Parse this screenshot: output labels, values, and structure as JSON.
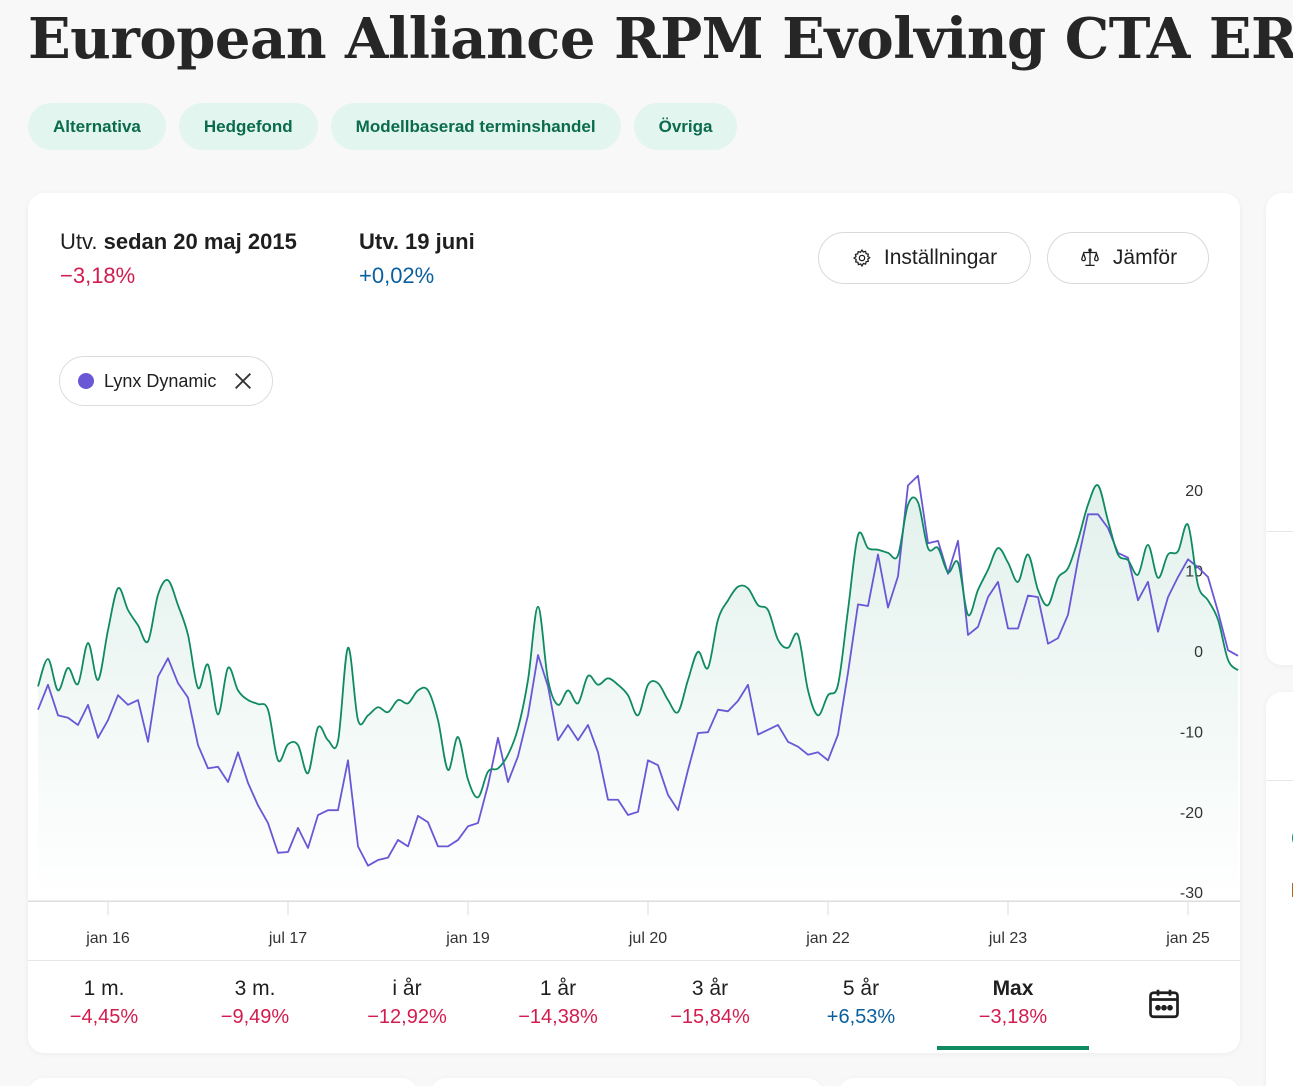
{
  "page": {
    "title": "European Alliance RPM Evolving CTA ER",
    "tags": [
      "Alternativa",
      "Hedgefond",
      "Modellbaserad terminshandel",
      "Övriga"
    ]
  },
  "summary": {
    "since": {
      "label_prefix": "Utv. ",
      "label_bold": "sedan 20 maj 2015",
      "value": "−3,18%",
      "sign": "negative"
    },
    "day": {
      "label_prefix": "",
      "label_bold": "Utv. 19 juni",
      "value": "+0,02%",
      "sign": "positive"
    }
  },
  "toolbar": {
    "settings_label": "Inställningar",
    "settings_icon": "gear-icon",
    "compare_label": "Jämför",
    "compare_icon": "scale-icon"
  },
  "compare_chip": {
    "label": "Lynx Dynamic",
    "color": "#6a57d6",
    "remove_icon": "close-icon"
  },
  "periods": [
    {
      "label": "1 m.",
      "value": "−4,45%",
      "sign": "negative",
      "active": false
    },
    {
      "label": "3 m.",
      "value": "−9,49%",
      "sign": "negative",
      "active": false
    },
    {
      "label": "i år",
      "value": "−12,92%",
      "sign": "negative",
      "active": false
    },
    {
      "label": "1 år",
      "value": "−14,38%",
      "sign": "negative",
      "active": false
    },
    {
      "label": "3 år",
      "value": "−15,84%",
      "sign": "negative",
      "active": false
    },
    {
      "label": "5 år",
      "value": "+6,53%",
      "sign": "positive",
      "active": false
    },
    {
      "label": "Max",
      "value": "−3,18%",
      "sign": "negative",
      "active": true
    }
  ],
  "calendar_icon": "calendar-icon",
  "colors": {
    "fund": "#0f8a63",
    "compare": "#6a57d6",
    "negative": "#d21c4f",
    "positive": "#0a5f9e",
    "tag_bg": "#e3f5ef",
    "tag_text": "#0a6b4d"
  },
  "chart_data": {
    "type": "line",
    "title": "",
    "xlabel": "",
    "ylabel": "%",
    "x_start": "2015-06",
    "x_step": "1 month",
    "x_tick_labels": [
      "jan 16",
      "jul 17",
      "jan 19",
      "jul 20",
      "jan 22",
      "jul 23",
      "jan 25"
    ],
    "x_tick_index": [
      7,
      25,
      43,
      61,
      79,
      97,
      115
    ],
    "y_ticks": [
      20,
      10,
      0,
      -10,
      -20,
      -30
    ],
    "ylim": [
      -30,
      20
    ],
    "grid": false,
    "legend": "chip top-left",
    "series": [
      {
        "name": "European Alliance RPM Evolving CTA ER",
        "color": "#0f8a63",
        "area_fill": true,
        "values": [
          -4.4,
          -1.0,
          -4.9,
          -2.1,
          -4.1,
          1.0,
          -3.6,
          2.6,
          7.8,
          5.1,
          3.2,
          1.2,
          7.0,
          8.8,
          5.7,
          2.0,
          -4.6,
          -1.7,
          -7.9,
          -2.1,
          -4.9,
          -6.1,
          -6.6,
          -7.3,
          -13.6,
          -11.6,
          -11.7,
          -15.2,
          -9.5,
          -11.1,
          -11.2,
          0.4,
          -8.6,
          -8.0,
          -7.0,
          -7.6,
          -6.1,
          -6.5,
          -4.9,
          -4.9,
          -8.6,
          -14.8,
          -10.7,
          -16.0,
          -18.2,
          -15.0,
          -14.6,
          -12.9,
          -9.6,
          -3.6,
          5.5,
          -3.6,
          -6.7,
          -4.9,
          -6.5,
          -3.1,
          -4.2,
          -3.4,
          -4.2,
          -5.5,
          -8.0,
          -4.2,
          -4.0,
          -6.1,
          -7.6,
          -3.6,
          -0.1,
          -2.1,
          3.9,
          6.3,
          8.0,
          7.8,
          5.7,
          5.1,
          1.4,
          0.4,
          2.0,
          -4.9,
          -8.0,
          -5.5,
          -4.2,
          5.1,
          14.4,
          12.8,
          12.6,
          12.2,
          11.9,
          18.2,
          18.5,
          12.8,
          12.8,
          9.8,
          11.0,
          4.5,
          7.6,
          10.1,
          12.8,
          11.0,
          8.6,
          12.0,
          7.6,
          5.7,
          9.1,
          10.3,
          13.8,
          18.2,
          20.6,
          16.2,
          12.0,
          11.3,
          9.5,
          13.2,
          9.1,
          12.0,
          12.4,
          15.7,
          8.2,
          6.3,
          3.9,
          -1.1,
          -2.4
        ]
      },
      {
        "name": "Lynx Dynamic",
        "color": "#6a57d6",
        "area_fill": false,
        "values": [
          -7.3,
          -4.2,
          -8.0,
          -8.3,
          -9.2,
          -6.7,
          -10.8,
          -8.6,
          -5.5,
          -6.7,
          -6.1,
          -11.3,
          -3.2,
          -0.9,
          -4.0,
          -5.8,
          -11.7,
          -14.6,
          -14.4,
          -16.3,
          -12.6,
          -16.4,
          -19.2,
          -21.4,
          -25.1,
          -25.0,
          -22.0,
          -24.5,
          -20.4,
          -19.8,
          -19.8,
          -13.6,
          -24.3,
          -26.7,
          -26.0,
          -25.7,
          -23.5,
          -24.3,
          -20.5,
          -21.3,
          -24.3,
          -24.3,
          -23.5,
          -21.8,
          -21.4,
          -16.7,
          -10.8,
          -16.3,
          -13.1,
          -8.0,
          -0.5,
          -4.4,
          -11.1,
          -9.2,
          -11.1,
          -9.2,
          -12.6,
          -18.5,
          -18.5,
          -20.4,
          -20.0,
          -13.6,
          -14.2,
          -17.9,
          -19.8,
          -14.8,
          -10.2,
          -10.1,
          -7.3,
          -7.5,
          -6.2,
          -4.2,
          -10.4,
          -9.8,
          -9.2,
          -11.3,
          -11.9,
          -12.9,
          -12.6,
          -13.6,
          -10.4,
          -2.7,
          5.8,
          5.6,
          12.0,
          5.4,
          9.3,
          20.6,
          21.8,
          13.4,
          13.7,
          9.6,
          13.7,
          2.0,
          3.0,
          6.7,
          8.6,
          2.8,
          2.8,
          6.9,
          6.7,
          0.9,
          1.6,
          4.5,
          11.3,
          17.0,
          17.0,
          15.3,
          12.2,
          11.6,
          6.3,
          8.6,
          2.4,
          6.7,
          9.2,
          11.4,
          10.4,
          9.2,
          4.9,
          0.1,
          -0.6
        ]
      }
    ]
  }
}
